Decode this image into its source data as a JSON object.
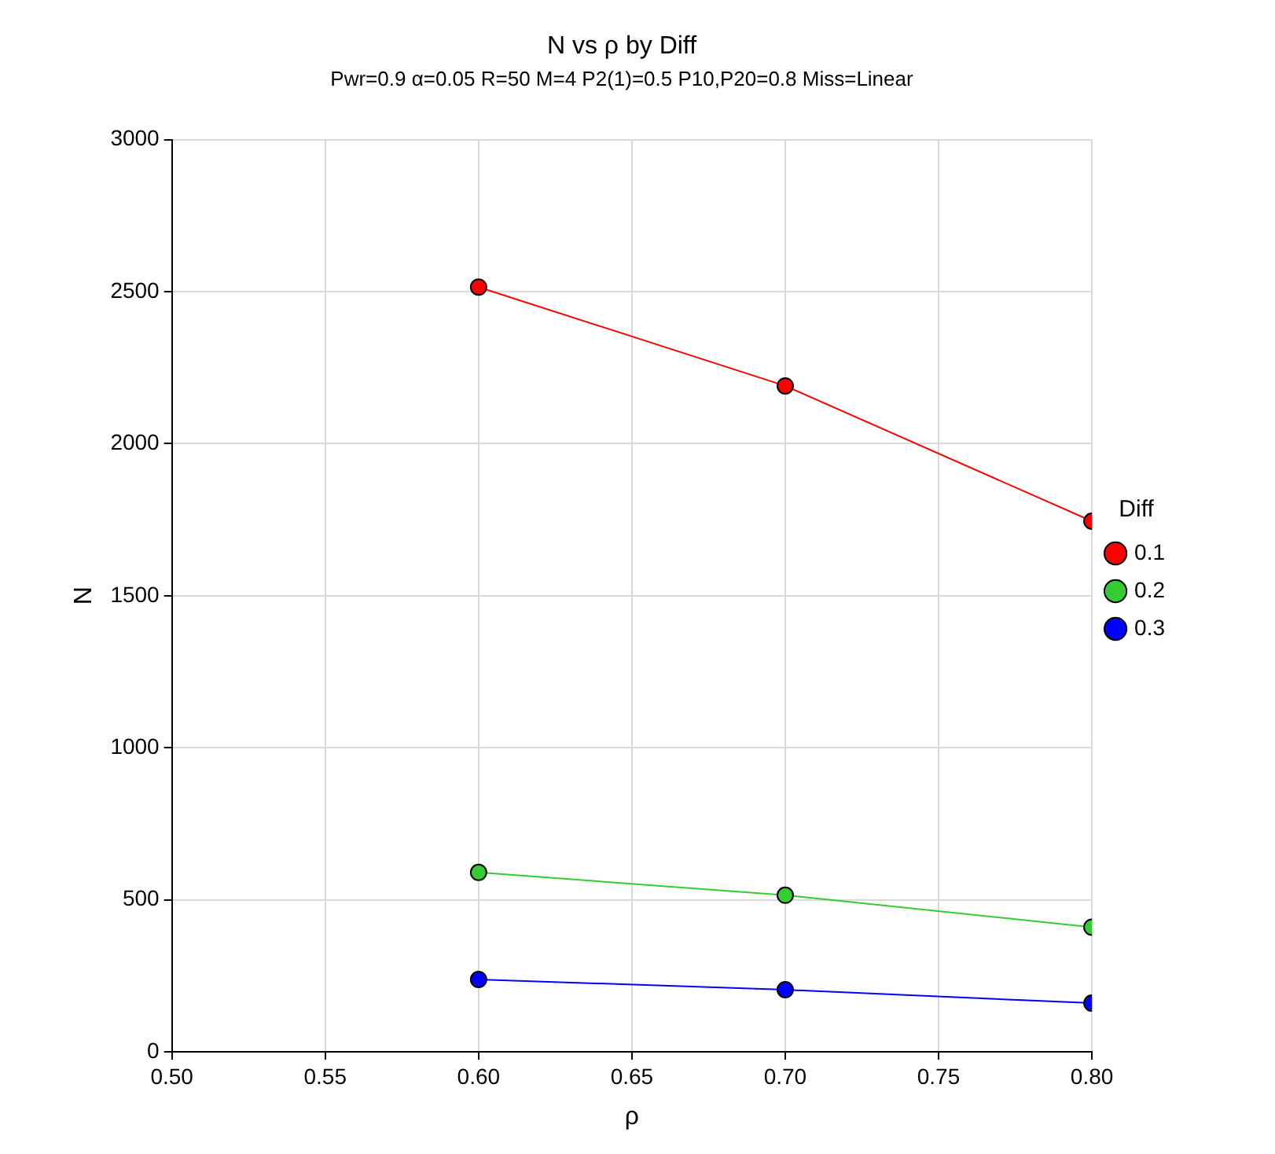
{
  "chart_data": {
    "type": "line",
    "title": "N vs ρ by Diff",
    "subtitle": "Pwr=0.9 α=0.05 R=50 M=4 P2(1)=0.5 P10,P20=0.8 Miss=Linear",
    "xlabel": "ρ",
    "ylabel": "N",
    "legend_title": "Diff",
    "x": [
      0.6,
      0.7,
      0.8
    ],
    "series": [
      {
        "name": "0.1",
        "color": "#ff0000",
        "values": [
          2515,
          2190,
          1745
        ]
      },
      {
        "name": "0.2",
        "color": "#33cc33",
        "values": [
          590,
          515,
          410
        ]
      },
      {
        "name": "0.3",
        "color": "#0000ff",
        "values": [
          238,
          204,
          160
        ]
      }
    ],
    "xlim": [
      0.5,
      0.8
    ],
    "xticks": [
      {
        "value": 0.5,
        "label": "0.50"
      },
      {
        "value": 0.55,
        "label": "0.55"
      },
      {
        "value": 0.6,
        "label": "0.60"
      },
      {
        "value": 0.65,
        "label": "0.65"
      },
      {
        "value": 0.7,
        "label": "0.70"
      },
      {
        "value": 0.75,
        "label": "0.75"
      },
      {
        "value": 0.8,
        "label": "0.80"
      }
    ],
    "ylim": [
      0,
      3000
    ],
    "yticks": [
      0,
      500,
      1000,
      1500,
      2000,
      2500,
      3000
    ],
    "grid": true,
    "legend": "right",
    "marker": "circle",
    "line_style": "solid"
  }
}
